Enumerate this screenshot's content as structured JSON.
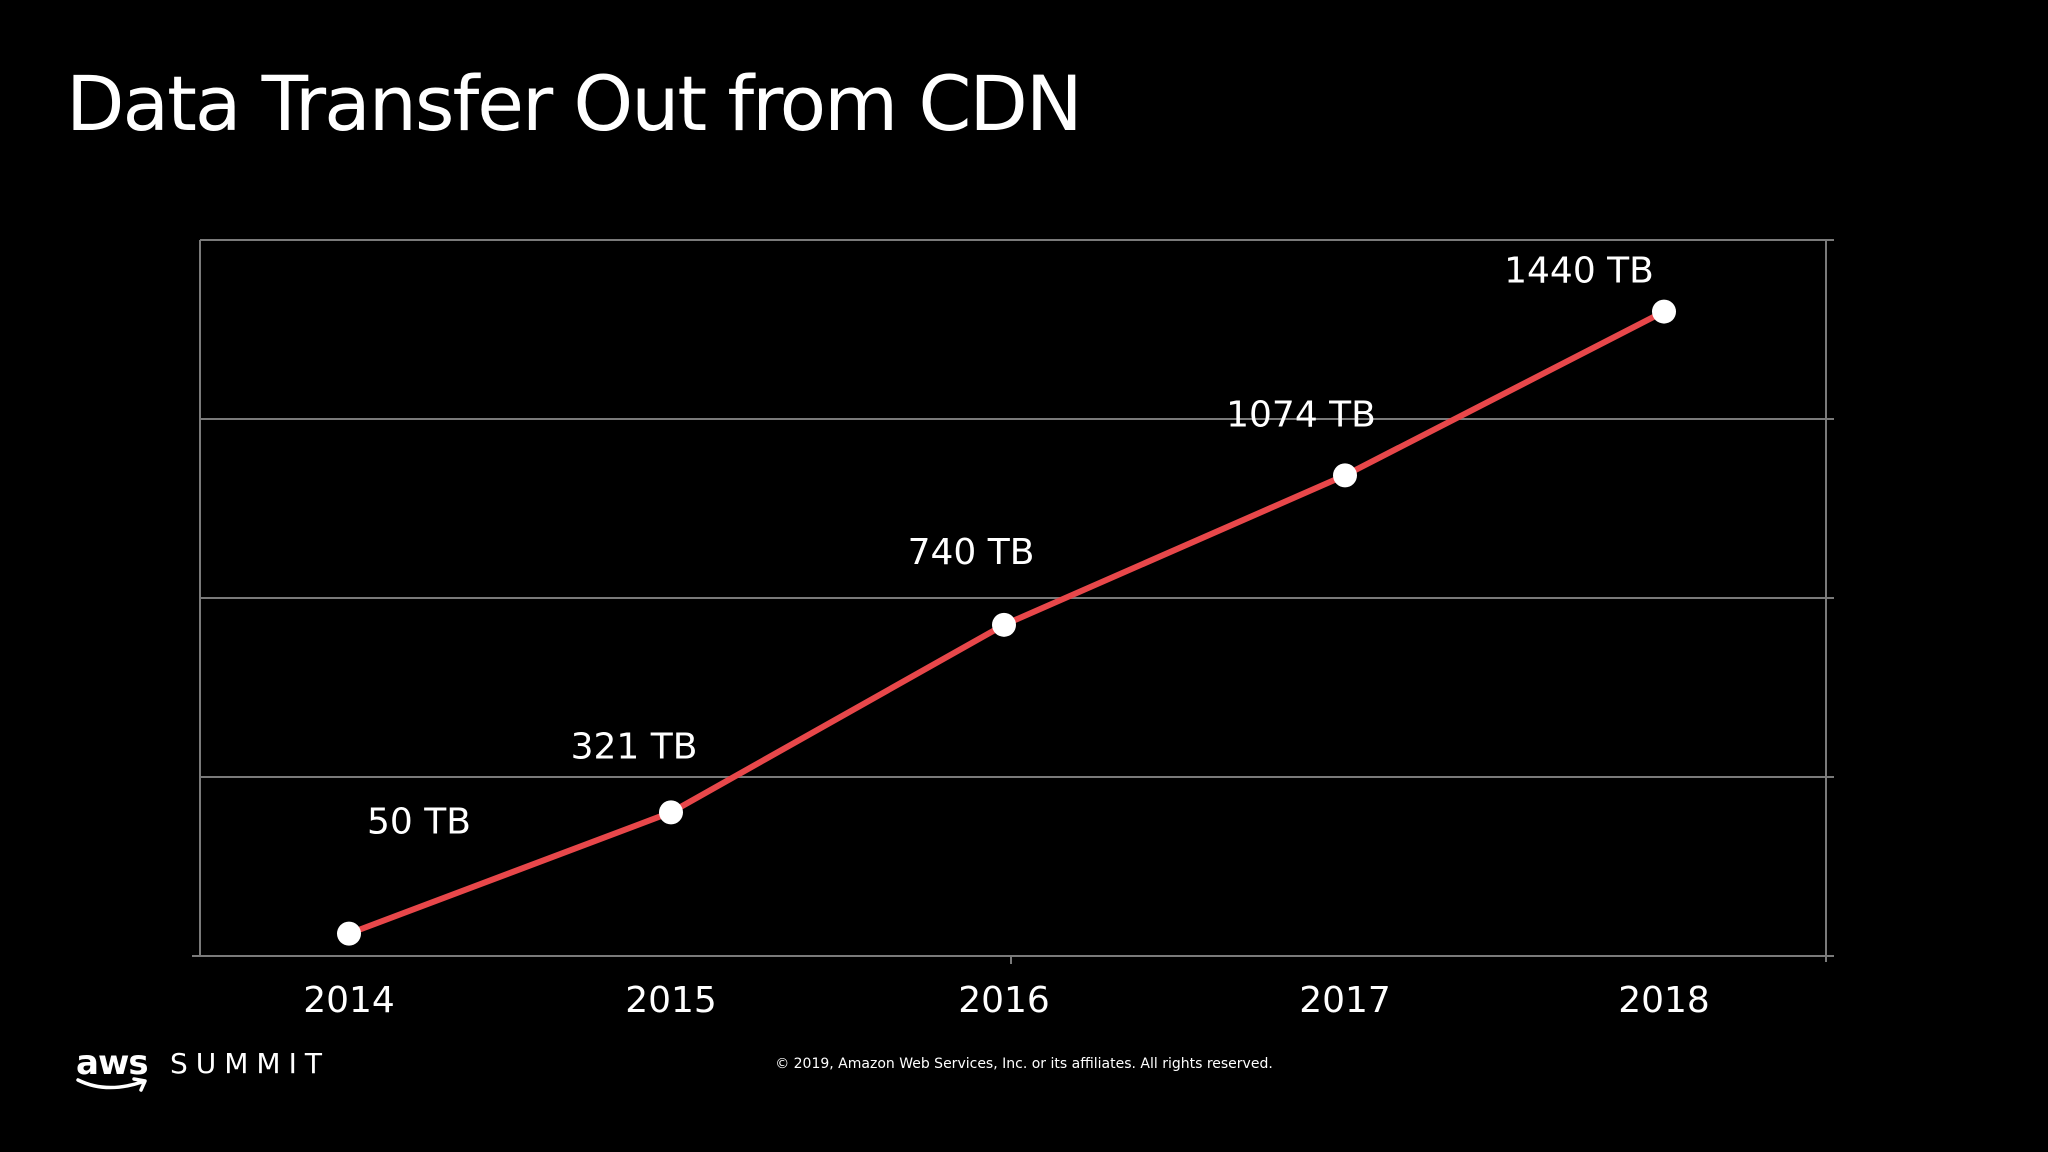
{
  "slide": {
    "title": "Data Transfer Out from CDN",
    "copyright": "© 2019, Amazon Web Services, Inc. or its affiliates. All rights reserved.",
    "brand": {
      "logo_word": "aws",
      "event_word": "SUMMIT"
    }
  },
  "colors": {
    "background": "#000000",
    "line": "#e8474a",
    "points": "#ffffff",
    "grid": "#7a7a7a",
    "text": "#ffffff"
  },
  "chart_data": {
    "type": "line",
    "title": "",
    "xlabel": "",
    "ylabel": "",
    "x": [
      "2014",
      "2015",
      "2016",
      "2017",
      "2018"
    ],
    "series": [
      {
        "values": [
          50,
          321,
          740,
          1074,
          1440
        ],
        "labels": [
          "50 TB",
          "321 TB",
          "740 TB",
          "1074 TB",
          "1440 TB"
        ]
      }
    ],
    "ylim": [
      0,
      1600
    ],
    "grid": true,
    "legend": "none",
    "y_tick_labels": "hidden"
  }
}
